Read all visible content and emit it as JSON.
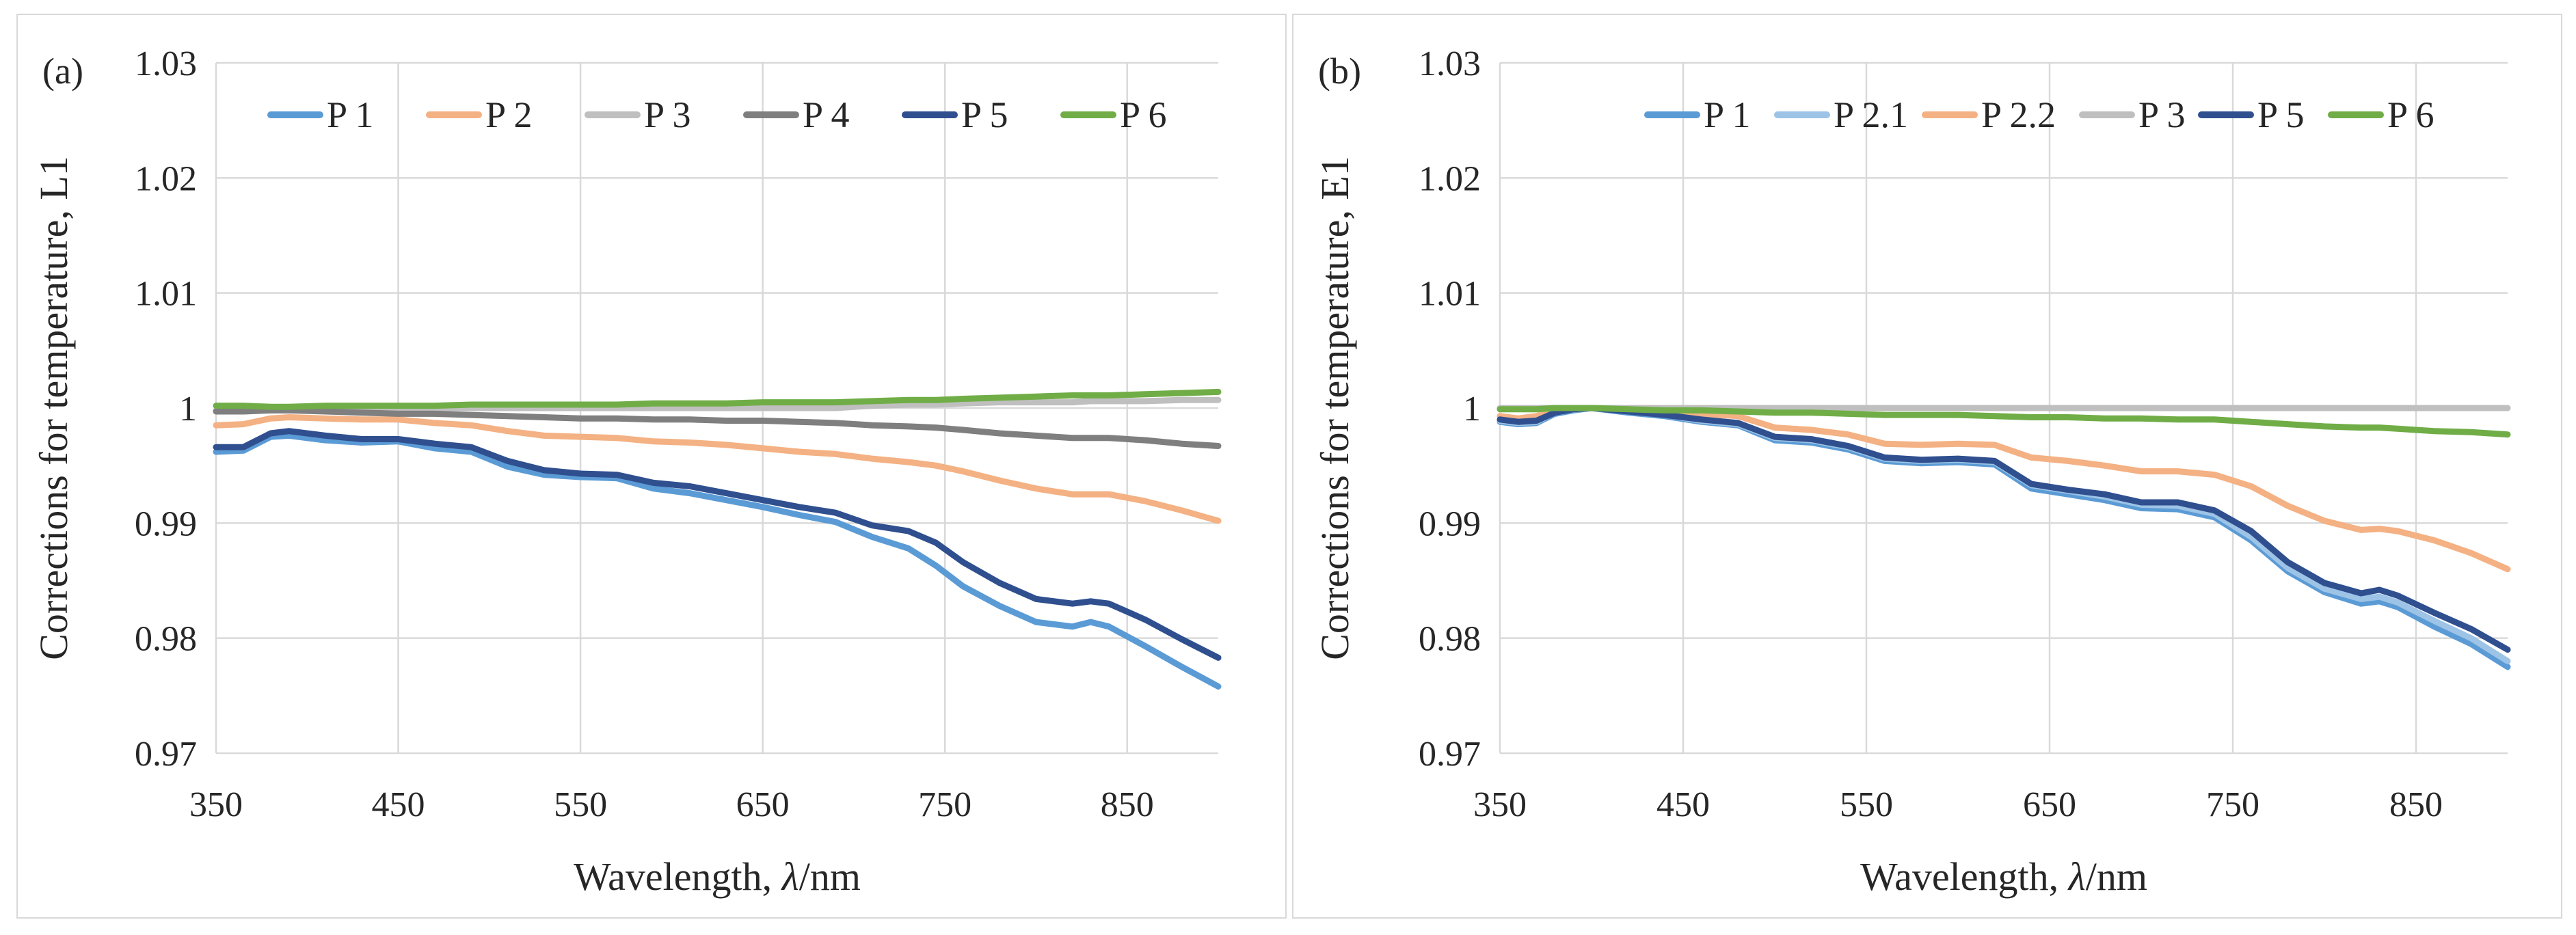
{
  "chart_data": [
    {
      "type": "line",
      "panel_label": "(a)",
      "xlabel_prefix": "Wavelength, ",
      "xlabel_symbol": "λ",
      "xlabel_suffix": "/nm",
      "ylabel": "Corrections for temperature, L1",
      "xlim": [
        350,
        900
      ],
      "ylim": [
        0.97,
        1.03
      ],
      "xticks": [
        350,
        450,
        550,
        650,
        750,
        850
      ],
      "xtick_labels": [
        "350",
        "450",
        "550",
        "650",
        "750",
        "850"
      ],
      "yticks": [
        0.97,
        0.98,
        0.99,
        1.0,
        1.01,
        1.02,
        1.03
      ],
      "ytick_labels": [
        "0.97",
        "0.98",
        "0.99",
        "1",
        "1.01",
        "1.02",
        "1.03"
      ],
      "legend_position": "top",
      "x": [
        350,
        365,
        380,
        390,
        410,
        430,
        450,
        470,
        490,
        510,
        530,
        550,
        570,
        590,
        610,
        630,
        650,
        670,
        690,
        710,
        730,
        745,
        760,
        780,
        800,
        820,
        830,
        840,
        860,
        880,
        900
      ],
      "series": [
        {
          "name": "P 1",
          "color": "#5b9bd5",
          "values": [
            0.9962,
            0.9963,
            0.9975,
            0.9976,
            0.9972,
            0.997,
            0.9971,
            0.9965,
            0.9962,
            0.9949,
            0.9942,
            0.994,
            0.9939,
            0.993,
            0.9926,
            0.992,
            0.9914,
            0.9907,
            0.9901,
            0.9888,
            0.9878,
            0.9863,
            0.9845,
            0.9828,
            0.9814,
            0.981,
            0.9814,
            0.981,
            0.9793,
            0.9775,
            0.9758
          ]
        },
        {
          "name": "P 2",
          "color": "#f4b183",
          "values": [
            0.9985,
            0.9986,
            0.9991,
            0.9992,
            0.9991,
            0.999,
            0.999,
            0.9987,
            0.9985,
            0.998,
            0.9976,
            0.9975,
            0.9974,
            0.9971,
            0.997,
            0.9968,
            0.9965,
            0.9962,
            0.996,
            0.9956,
            0.9953,
            0.995,
            0.9945,
            0.9937,
            0.993,
            0.9925,
            0.9925,
            0.9925,
            0.9919,
            0.9911,
            0.9902
          ]
        },
        {
          "name": "P 3",
          "color": "#bfbfbf",
          "values": [
            0.9998,
            0.9998,
            0.9998,
            0.9998,
            0.9999,
            0.9999,
            0.9999,
            1.0,
            1.0,
            1.0,
            1.0,
            1.0,
            1.0,
            1.0,
            1.0,
            1.0,
            1.0,
            1.0,
            1.0,
            1.0002,
            1.0003,
            1.0003,
            1.0004,
            1.0005,
            1.0005,
            1.0005,
            1.0006,
            1.0006,
            1.0006,
            1.0007,
            1.0007
          ]
        },
        {
          "name": "P 4",
          "color": "#7f7f7f",
          "values": [
            0.9997,
            0.9997,
            0.9998,
            0.9998,
            0.9997,
            0.9996,
            0.9995,
            0.9995,
            0.9994,
            0.9993,
            0.9992,
            0.9991,
            0.9991,
            0.999,
            0.999,
            0.9989,
            0.9989,
            0.9988,
            0.9987,
            0.9985,
            0.9984,
            0.9983,
            0.9981,
            0.9978,
            0.9976,
            0.9974,
            0.9974,
            0.9974,
            0.9972,
            0.9969,
            0.9967
          ]
        },
        {
          "name": "P 5",
          "color": "#2f4f8f",
          "values": [
            0.9966,
            0.9966,
            0.9978,
            0.998,
            0.9976,
            0.9973,
            0.9973,
            0.9969,
            0.9966,
            0.9954,
            0.9946,
            0.9943,
            0.9942,
            0.9935,
            0.9932,
            0.9926,
            0.992,
            0.9914,
            0.9909,
            0.9898,
            0.9893,
            0.9883,
            0.9866,
            0.9848,
            0.9834,
            0.983,
            0.9832,
            0.983,
            0.9816,
            0.9799,
            0.9783
          ]
        },
        {
          "name": "P 6",
          "color": "#70ad47",
          "values": [
            1.0002,
            1.0002,
            1.0001,
            1.0001,
            1.0002,
            1.0002,
            1.0002,
            1.0002,
            1.0003,
            1.0003,
            1.0003,
            1.0003,
            1.0003,
            1.0004,
            1.0004,
            1.0004,
            1.0005,
            1.0005,
            1.0005,
            1.0006,
            1.0007,
            1.0007,
            1.0008,
            1.0009,
            1.001,
            1.0011,
            1.0011,
            1.0011,
            1.0012,
            1.0013,
            1.0014
          ]
        }
      ]
    },
    {
      "type": "line",
      "panel_label": "(b)",
      "xlabel_prefix": "Wavelength, ",
      "xlabel_symbol": "λ",
      "xlabel_suffix": "/nm",
      "ylabel": "Corrections for temperature, E1",
      "xlim": [
        350,
        900
      ],
      "ylim": [
        0.97,
        1.03
      ],
      "xticks": [
        350,
        450,
        550,
        650,
        750,
        850
      ],
      "xtick_labels": [
        "350",
        "450",
        "550",
        "650",
        "750",
        "850"
      ],
      "yticks": [
        0.97,
        0.98,
        0.99,
        1.0,
        1.01,
        1.02,
        1.03
      ],
      "ytick_labels": [
        "0.97",
        "0.98",
        "0.99",
        "1",
        "1.01",
        "1.02",
        "1.03"
      ],
      "legend_position": "top-right",
      "x": [
        350,
        360,
        370,
        380,
        390,
        400,
        420,
        440,
        460,
        480,
        500,
        520,
        540,
        560,
        580,
        600,
        620,
        640,
        660,
        680,
        700,
        720,
        740,
        760,
        780,
        800,
        820,
        830,
        840,
        860,
        880,
        900
      ],
      "series": [
        {
          "name": "P 1",
          "color": "#5b9bd5",
          "values": [
            0.9988,
            0.9986,
            0.9987,
            0.9995,
            0.9998,
            1.0,
            0.9996,
            0.9993,
            0.9988,
            0.9985,
            0.9972,
            0.997,
            0.9964,
            0.9954,
            0.9952,
            0.9953,
            0.9951,
            0.993,
            0.9925,
            0.992,
            0.9913,
            0.9912,
            0.9905,
            0.9885,
            0.9858,
            0.984,
            0.983,
            0.9832,
            0.9827,
            0.981,
            0.9795,
            0.9775
          ]
        },
        {
          "name": "P 2.1",
          "color": "#9dc3e6",
          "values": [
            0.9989,
            0.9987,
            0.9988,
            0.9996,
            0.9999,
            1.0,
            0.9997,
            0.9994,
            0.9989,
            0.9986,
            0.9974,
            0.9972,
            0.9966,
            0.9956,
            0.9954,
            0.9955,
            0.9953,
            0.9933,
            0.9928,
            0.9923,
            0.9916,
            0.9915,
            0.9908,
            0.9888,
            0.9861,
            0.9843,
            0.9834,
            0.9836,
            0.9831,
            0.9815,
            0.98,
            0.978
          ]
        },
        {
          "name": "P 2.2",
          "color": "#f4b183",
          "values": [
            0.9993,
            0.9991,
            0.9993,
            0.9998,
            0.9999,
            1.0,
            0.9999,
            0.9997,
            0.9995,
            0.9993,
            0.9983,
            0.9981,
            0.9977,
            0.9969,
            0.9968,
            0.9969,
            0.9968,
            0.9957,
            0.9954,
            0.995,
            0.9945,
            0.9945,
            0.9942,
            0.9932,
            0.9915,
            0.9902,
            0.9894,
            0.9895,
            0.9893,
            0.9885,
            0.9874,
            0.986
          ]
        },
        {
          "name": "P 3",
          "color": "#bfbfbf",
          "values": [
            1.0,
            1.0,
            1.0,
            1.0,
            1.0,
            1.0,
            1.0,
            1.0,
            1.0,
            1.0,
            1.0,
            1.0,
            1.0,
            1.0,
            1.0,
            1.0,
            1.0,
            1.0,
            1.0,
            1.0,
            1.0,
            1.0,
            1.0,
            1.0,
            1.0,
            1.0,
            1.0,
            1.0,
            1.0,
            1.0,
            1.0,
            1.0
          ]
        },
        {
          "name": "P 5",
          "color": "#2f4f8f",
          "values": [
            0.999,
            0.9988,
            0.9989,
            0.9996,
            0.9999,
            1.0,
            0.9997,
            0.9994,
            0.999,
            0.9987,
            0.9975,
            0.9973,
            0.9967,
            0.9957,
            0.9955,
            0.9956,
            0.9954,
            0.9934,
            0.9929,
            0.9925,
            0.9918,
            0.9918,
            0.9911,
            0.9893,
            0.9866,
            0.9848,
            0.9839,
            0.9842,
            0.9837,
            0.9822,
            0.9808,
            0.979
          ]
        },
        {
          "name": "P 6",
          "color": "#70ad47",
          "values": [
            0.9999,
            0.9999,
            0.9999,
            1.0,
            1.0,
            1.0,
            0.9999,
            0.9998,
            0.9998,
            0.9997,
            0.9996,
            0.9996,
            0.9995,
            0.9994,
            0.9994,
            0.9994,
            0.9993,
            0.9992,
            0.9992,
            0.9991,
            0.9991,
            0.999,
            0.999,
            0.9988,
            0.9986,
            0.9984,
            0.9983,
            0.9983,
            0.9982,
            0.998,
            0.9979,
            0.9977
          ]
        }
      ]
    }
  ]
}
